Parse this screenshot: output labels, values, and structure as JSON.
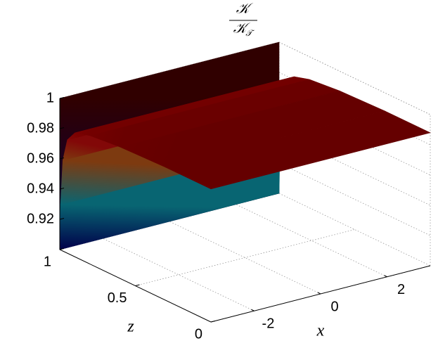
{
  "chart_data": {
    "type": "surface",
    "ylabel_numerator": "𝒦",
    "ylabel_denominator": "𝒦",
    "ylabel_denominator_subscript": "𝒯",
    "xlabel": "x",
    "zlabel": "z",
    "xlim": [
      -3.3,
      3.3
    ],
    "xticks": [
      -2,
      0,
      2
    ],
    "zlim": [
      0,
      1
    ],
    "zticks": [
      0,
      0.5,
      1
    ],
    "ylim": [
      0.9,
      1
    ],
    "yticks": [
      0.92,
      0.94,
      0.96,
      0.98,
      1
    ],
    "grid": true,
    "colormap": [
      "#00004a",
      "#003a7a",
      "#0a7070",
      "#6a7a10",
      "#8a1010",
      "#7a0000",
      "#300000"
    ],
    "surface": {
      "z": [
        1,
        1,
        0.995,
        0.98,
        0.95,
        0.9,
        0.8,
        0.6,
        0.3,
        0
      ],
      "values": [
        1,
        0.9,
        0.93,
        0.96,
        0.975,
        0.982,
        0.985,
        0.987,
        0.988,
        0.988
      ]
    }
  }
}
